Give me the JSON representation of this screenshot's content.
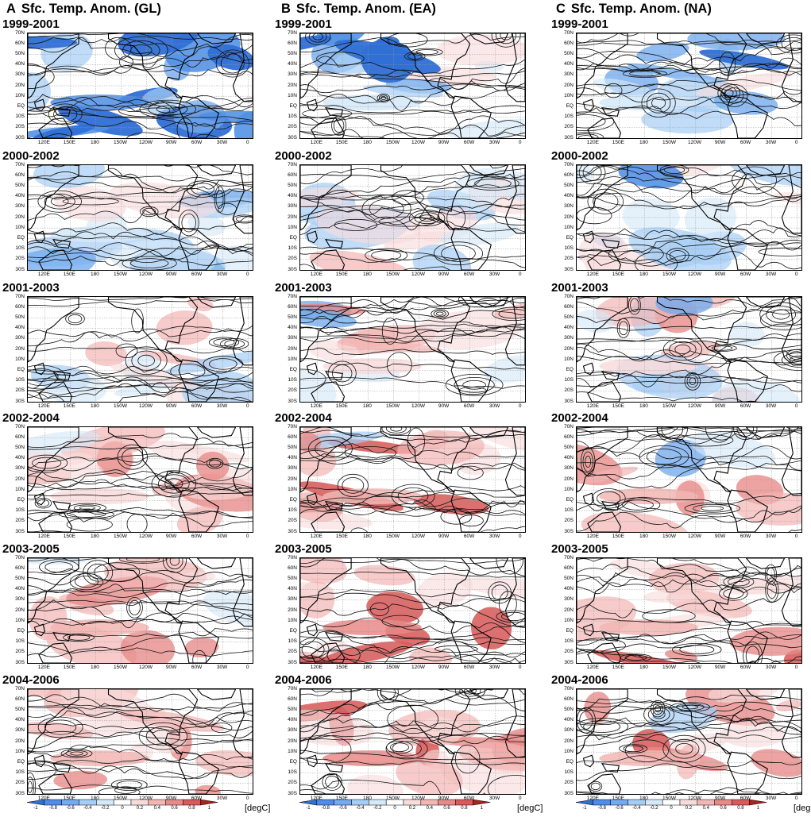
{
  "columns": [
    {
      "letter": "A",
      "title": "Sfc. Temp. Anom. (GL)",
      "seed": 11,
      "periods": [
        "1999-2001",
        "2000-2002",
        "2001-2003",
        "2002-2004",
        "2003-2005",
        "2004-2006"
      ],
      "warmth": [
        -0.55,
        -0.2,
        0.05,
        0.2,
        0.3,
        0.35
      ]
    },
    {
      "letter": "B",
      "title": "Sfc. Temp. Anom. (EA)",
      "seed": 47,
      "periods": [
        "1999-2001",
        "2000-2002",
        "2001-2003",
        "2002-2004",
        "2003-2005",
        "2004-2006"
      ],
      "warmth": [
        -0.15,
        -0.05,
        0.2,
        0.35,
        0.45,
        0.45
      ]
    },
    {
      "letter": "C",
      "title": "Sfc. Temp. Anom. (NA)",
      "seed": 83,
      "periods": [
        "1999-2001",
        "2000-2002",
        "2001-2003",
        "2002-2004",
        "2003-2005",
        "2004-2006"
      ],
      "warmth": [
        -0.2,
        -0.05,
        0.1,
        0.25,
        0.35,
        0.35
      ]
    }
  ],
  "axes": {
    "lat_labels": [
      "70N",
      "60N",
      "50N",
      "40N",
      "30N",
      "20N",
      "10N",
      "EQ",
      "10S",
      "20S",
      "30S"
    ],
    "lon_labels": [
      "120E",
      "150E",
      "180",
      "150W",
      "120W",
      "90W",
      "60W",
      "30W",
      "0"
    ]
  },
  "colorbar": {
    "ticks": [
      "-1",
      "-0.8",
      "-0.6",
      "-0.4",
      "-0.2",
      "0",
      "0.2",
      "0.4",
      "0.6",
      "0.8",
      "1"
    ],
    "unit": "[degC]",
    "colors": [
      "#2f6fd6",
      "#4d8ee6",
      "#74abef",
      "#a6cdf5",
      "#d4e9f9",
      "#ffffff",
      "#f8dcdc",
      "#f2b6b4",
      "#e88a88",
      "#d85a5a",
      "#b02020"
    ]
  }
}
